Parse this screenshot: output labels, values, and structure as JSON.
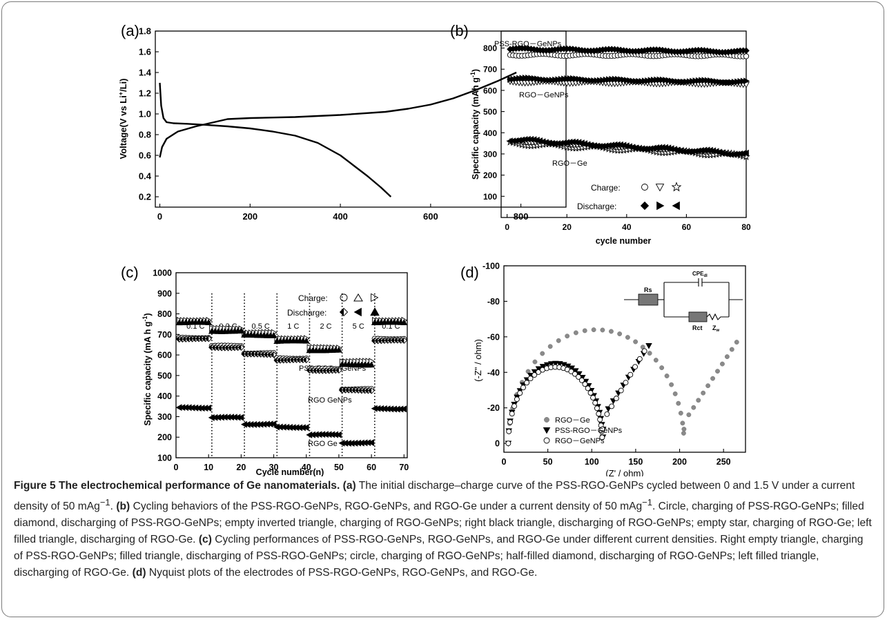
{
  "panels": {
    "a": {
      "label": "(a)",
      "ylabel_pre": "Voltage(V vs Li",
      "ylabel_sup": "+",
      "ylabel_post": "/Li)"
    },
    "b": {
      "label": "(b)",
      "ylabel_pre": "Specific capacity (mAh g",
      "ylabel_sup": "-1",
      "ylabel_post": ")",
      "xlabel": "cycle number",
      "annotations": [
        "PSS-RGO－GeNPs",
        "RGO－GeNPs",
        "RGO－Ge"
      ],
      "legend_charge": "Charge:",
      "legend_discharge": "Discharge:"
    },
    "c": {
      "label": "(c)",
      "ylabel_pre": "Specific capacity (mA h g",
      "ylabel_sup": "-1",
      "ylabel_post": ")",
      "xlabel": "Cycle number(n)",
      "annotations": [
        "PSS-RGO－GeNPs",
        "RGO   GeNPs",
        "RGO   Ge"
      ],
      "legend_charge": "Charge:",
      "legend_discharge": "Discharge:"
    },
    "d": {
      "label": "(d)",
      "ylabel": "(-Z\" / ohm)",
      "xlabel": "(Z' / ohm)",
      "circuit": {
        "rs": "Rs",
        "cpe": "CPE",
        "cpe_sub": "dl",
        "rct": "Rct",
        "zw": "Z",
        "zw_sub": "w"
      }
    }
  },
  "chart_data": [
    {
      "panel": "a",
      "type": "line",
      "xlim": [
        -10,
        900
      ],
      "ylim": [
        0.1,
        1.8
      ],
      "xticks": [
        0,
        200,
        400,
        600,
        800
      ],
      "yticks": [
        0.2,
        0.4,
        0.6,
        0.8,
        1.0,
        1.2,
        1.4,
        1.6,
        1.8
      ],
      "series": [
        {
          "x": [
            0,
            3,
            8,
            15,
            30,
            60,
            100,
            150,
            200,
            250,
            300,
            350,
            400,
            430,
            460,
            490,
            512
          ],
          "y": [
            1.3,
            1.08,
            0.96,
            0.92,
            0.91,
            0.905,
            0.895,
            0.88,
            0.86,
            0.83,
            0.79,
            0.72,
            0.6,
            0.5,
            0.4,
            0.29,
            0.2
          ]
        },
        {
          "x": [
            0,
            5,
            15,
            40,
            80,
            120,
            150,
            200,
            300,
            400,
            500,
            550,
            600,
            650,
            700,
            750,
            790
          ],
          "y": [
            0.58,
            0.68,
            0.76,
            0.83,
            0.88,
            0.92,
            0.95,
            0.96,
            0.97,
            0.99,
            1.02,
            1.05,
            1.09,
            1.15,
            1.23,
            1.32,
            1.4
          ]
        }
      ]
    },
    {
      "panel": "b",
      "type": "scatter",
      "xlim": [
        -2,
        80
      ],
      "ylim": [
        0,
        880
      ],
      "xticks": [
        0,
        20,
        40,
        60,
        80
      ],
      "yticks": [
        100,
        200,
        300,
        400,
        500,
        600,
        700,
        800
      ],
      "series": [
        {
          "marker": "circle-open",
          "level_start": 768,
          "level_end": 765
        },
        {
          "marker": "diamond-filled",
          "level_start": 795,
          "level_end": 783
        },
        {
          "marker": "triangle-down-open",
          "level_start": 640,
          "level_end": 632
        },
        {
          "marker": "triangle-right-filled",
          "level_start": 655,
          "level_end": 640
        },
        {
          "marker": "star-open",
          "level_start": 350,
          "level_end": 292
        },
        {
          "marker": "triangle-left-filled",
          "level_start": 368,
          "level_end": 300
        }
      ]
    },
    {
      "panel": "c",
      "type": "scatter",
      "xlim": [
        0,
        71
      ],
      "ylim": [
        100,
        1000
      ],
      "xticks": [
        0,
        10,
        20,
        30,
        40,
        50,
        60,
        70
      ],
      "yticks": [
        100,
        200,
        300,
        400,
        500,
        600,
        700,
        800,
        900,
        1000
      ],
      "rates": [
        "0.1 C",
        "0.2 C",
        "0.5 C",
        "1 C",
        "2 C",
        "5 C",
        "0.1 C"
      ],
      "dividers": [
        11,
        21,
        31,
        41,
        51,
        61
      ],
      "series": [
        {
          "marker": "triangle-right-open",
          "levels": [
            768,
            728,
            708,
            680,
            635,
            568,
            768
          ]
        },
        {
          "marker": "triangle-up-filled",
          "levels": [
            758,
            716,
            696,
            668,
            623,
            553,
            758
          ]
        },
        {
          "marker": "circle-open",
          "levels": [
            683,
            644,
            608,
            583,
            532,
            433,
            678
          ]
        },
        {
          "marker": "diamond-half",
          "levels": [
            678,
            636,
            603,
            575,
            525,
            428,
            670
          ]
        },
        {
          "marker": "triangle-left-filled",
          "levels": [
            343,
            296,
            263,
            248,
            212,
            172,
            338
          ]
        }
      ]
    },
    {
      "panel": "d",
      "type": "scatter",
      "xlim": [
        0,
        275
      ],
      "ylim": [
        5,
        -100
      ],
      "xticks": [
        0,
        50,
        100,
        150,
        200,
        250
      ],
      "yticks": [
        0,
        -20,
        -40,
        -60,
        -80,
        -100
      ],
      "series": [
        {
          "name": "RGO－Ge",
          "marker": "circle-filled-gray",
          "semicircle": [
            5,
            205,
            -64
          ],
          "tail": [
            [
              205,
              -12
            ],
            [
              265,
              -57
            ]
          ]
        },
        {
          "name": "PSS-RGO－GeNPs",
          "marker": "triangle-down-filled",
          "semicircle": [
            5,
            113,
            -45
          ],
          "tail": [
            [
              113,
              -15
            ],
            [
              165,
              -55
            ]
          ]
        },
        {
          "name": "RGO－GeNPs",
          "marker": "circle-open",
          "semicircle": [
            5,
            112,
            -43
          ],
          "tail": [
            [
              112,
              -12
            ],
            [
              160,
              -52
            ]
          ]
        }
      ]
    }
  ],
  "caption": {
    "title": "Figure 5 The electrochemical performance of Ge nanomaterials.",
    "a_tag": "(a)",
    "a_text": "The initial discharge–charge curve of the PSS-RGO-GeNPs cycled between 0 and 1.5 V under a current density of 50 mAg",
    "unit_sup": "−1",
    "period": ".",
    "b_tag": "(b)",
    "b_text": "Cycling behaviors of the PSS-RGO-GeNPs, RGO-GeNPs, and RGO-Ge under a current density of 50 mAg",
    "b_text_2": ". Circle, charging of PSS-RGO-GeNPs; filled diamond, discharging of PSS-RGO-GeNPs; empty inverted triangle, charging of RGO-GeNPs; right black triangle, discharging of RGO-GeNPs; empty star, charging of RGO-Ge; left filled triangle, discharging of RGO-Ge.",
    "c_tag": "(c)",
    "c_text": "Cycling performances of PSS-RGO-GeNPs, RGO-GeNPs, and RGO-Ge under different current densities. Right empty triangle, charging of PSS-RGO-GeNPs; filled triangle, discharging of PSS-RGO-GeNPs; circle, charging of RGO-GeNPs; half-filled diamond, discharging of RGO-GeNPs; left filled triangle, discharging of RGO-Ge.",
    "d_tag": "(d)",
    "d_text": "Nyquist plots of the electrodes of PSS-RGO-GeNPs, RGO-GeNPs, and RGO-Ge."
  }
}
